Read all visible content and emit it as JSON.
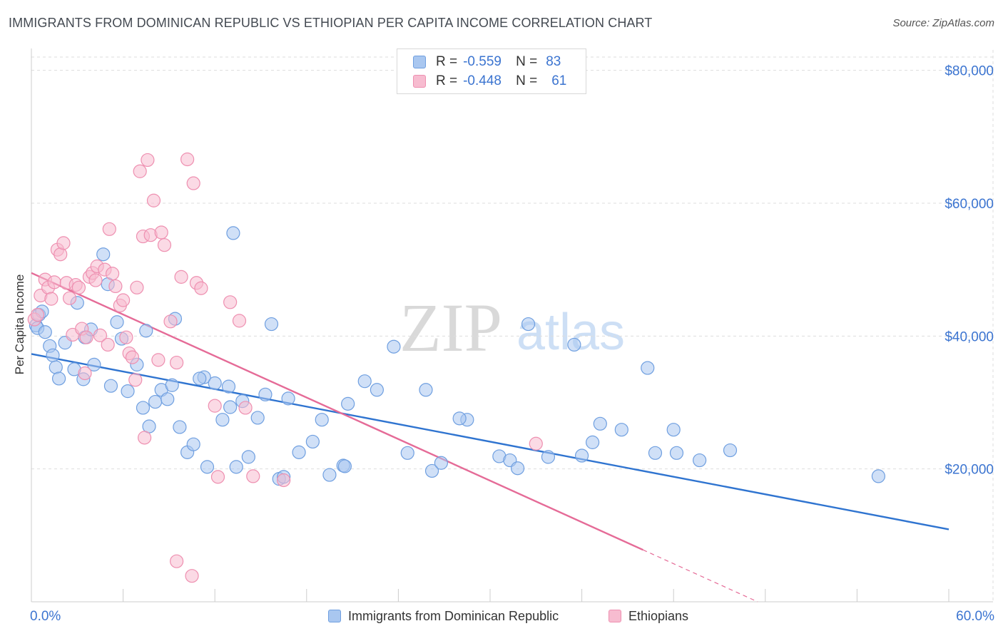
{
  "title": "IMMIGRANTS FROM DOMINICAN REPUBLIC VS ETHIOPIAN PER CAPITA INCOME CORRELATION CHART",
  "source": "Source: ZipAtlas.com",
  "watermark": {
    "zip": "ZIP",
    "atlas": "atlas"
  },
  "legend": {
    "r_label": "R =",
    "n_label": "N =",
    "rows": [
      {
        "r": "-0.559",
        "n": "83"
      },
      {
        "r": "-0.448",
        "n": "61"
      }
    ]
  },
  "colors": {
    "blue_fill": "#a9c7f0",
    "blue_stroke": "#6f9fe0",
    "blue_line": "#2f74d0",
    "pink_fill": "#f7bcd0",
    "pink_stroke": "#ee8fb0",
    "pink_line": "#e56b97",
    "axis_blue": "#3b74d0"
  },
  "chart_data": {
    "type": "scatter",
    "title": "IMMIGRANTS FROM DOMINICAN REPUBLIC VS ETHIOPIAN PER CAPITA INCOME CORRELATION CHART",
    "xlabel": "",
    "ylabel": "Per Capita Income",
    "xlim": [
      0,
      60
    ],
    "ylim": [
      0,
      82000
    ],
    "x_tick_labels": [
      "0.0%",
      "60.0%"
    ],
    "y_ticks": [
      20000,
      40000,
      60000,
      80000
    ],
    "y_tick_labels": [
      "$20,000",
      "$40,000",
      "$60,000",
      "$80,000"
    ],
    "grid": true,
    "series": [
      {
        "name": "Immigrants from Dominican Republic",
        "color": "blue",
        "trend": {
          "x0": 0,
          "y0": 37300,
          "x1": 60,
          "y1": 10900,
          "solid_until": 60
        },
        "points": [
          [
            0.3,
            41600
          ],
          [
            0.4,
            41200
          ],
          [
            0.5,
            43200
          ],
          [
            0.7,
            43700
          ],
          [
            0.9,
            40600
          ],
          [
            1.2,
            38500
          ],
          [
            1.4,
            37100
          ],
          [
            1.6,
            35300
          ],
          [
            1.8,
            33600
          ],
          [
            2.2,
            39000
          ],
          [
            2.8,
            35000
          ],
          [
            3.0,
            45000
          ],
          [
            3.4,
            33500
          ],
          [
            3.5,
            39800
          ],
          [
            3.9,
            41000
          ],
          [
            4.1,
            35700
          ],
          [
            4.7,
            52300
          ],
          [
            5.0,
            47800
          ],
          [
            5.2,
            32500
          ],
          [
            5.6,
            42100
          ],
          [
            5.9,
            39600
          ],
          [
            6.3,
            31700
          ],
          [
            6.9,
            35700
          ],
          [
            7.3,
            29200
          ],
          [
            7.5,
            40800
          ],
          [
            7.7,
            26400
          ],
          [
            8.1,
            30100
          ],
          [
            8.5,
            31900
          ],
          [
            8.9,
            30500
          ],
          [
            9.2,
            32600
          ],
          [
            9.4,
            42600
          ],
          [
            9.7,
            26300
          ],
          [
            10.2,
            22500
          ],
          [
            10.6,
            23700
          ],
          [
            11.3,
            33800
          ],
          [
            11.5,
            20300
          ],
          [
            12.0,
            32900
          ],
          [
            12.5,
            27400
          ],
          [
            12.9,
            32400
          ],
          [
            13.0,
            29300
          ],
          [
            13.4,
            20300
          ],
          [
            13.8,
            30200
          ],
          [
            14.2,
            21800
          ],
          [
            14.8,
            27700
          ],
          [
            15.3,
            31200
          ],
          [
            15.7,
            41800
          ],
          [
            16.8,
            30600
          ],
          [
            16.2,
            18500
          ],
          [
            16.5,
            18800
          ],
          [
            17.5,
            22500
          ],
          [
            18.4,
            24100
          ],
          [
            19.0,
            27400
          ],
          [
            19.5,
            19100
          ],
          [
            20.4,
            20500
          ],
          [
            20.7,
            29800
          ],
          [
            21.8,
            33200
          ],
          [
            22.6,
            31900
          ],
          [
            23.7,
            38400
          ],
          [
            24.6,
            22400
          ],
          [
            25.8,
            31900
          ],
          [
            26.2,
            19700
          ],
          [
            26.8,
            20900
          ],
          [
            28.5,
            27400
          ],
          [
            30.6,
            21900
          ],
          [
            31.3,
            21300
          ],
          [
            31.8,
            20100
          ],
          [
            32.5,
            41800
          ],
          [
            33.8,
            21800
          ],
          [
            35.5,
            38700
          ],
          [
            36.0,
            22000
          ],
          [
            36.7,
            24000
          ],
          [
            37.2,
            26800
          ],
          [
            38.6,
            25900
          ],
          [
            40.3,
            35200
          ],
          [
            40.8,
            22400
          ],
          [
            42.0,
            25900
          ],
          [
            42.2,
            22400
          ],
          [
            43.7,
            21300
          ],
          [
            45.7,
            22800
          ],
          [
            55.4,
            18900
          ],
          [
            20.5,
            20400
          ],
          [
            13.2,
            55500
          ],
          [
            28.0,
            27600
          ],
          [
            11.0,
            33600
          ]
        ]
      },
      {
        "name": "Ethiopians",
        "color": "pink",
        "trend": {
          "x0": 0,
          "y0": 49500,
          "x1": 47.5,
          "y1": 0,
          "solid_until": 40
        },
        "points": [
          [
            0.2,
            42500
          ],
          [
            0.4,
            43200
          ],
          [
            0.6,
            46100
          ],
          [
            0.9,
            48500
          ],
          [
            1.1,
            47300
          ],
          [
            1.3,
            45600
          ],
          [
            1.5,
            48100
          ],
          [
            1.7,
            53000
          ],
          [
            1.9,
            52300
          ],
          [
            2.1,
            54000
          ],
          [
            2.3,
            48000
          ],
          [
            2.5,
            45700
          ],
          [
            2.7,
            40200
          ],
          [
            2.9,
            47700
          ],
          [
            3.1,
            47300
          ],
          [
            3.3,
            41100
          ],
          [
            3.6,
            39800
          ],
          [
            3.8,
            48900
          ],
          [
            4.0,
            49500
          ],
          [
            4.2,
            48400
          ],
          [
            4.3,
            50500
          ],
          [
            4.5,
            40100
          ],
          [
            4.8,
            50000
          ],
          [
            5.0,
            38700
          ],
          [
            5.1,
            56100
          ],
          [
            5.3,
            49400
          ],
          [
            5.5,
            47500
          ],
          [
            5.8,
            44600
          ],
          [
            6.0,
            45400
          ],
          [
            6.2,
            39800
          ],
          [
            6.4,
            37400
          ],
          [
            6.6,
            36800
          ],
          [
            6.9,
            47300
          ],
          [
            7.1,
            64800
          ],
          [
            7.3,
            55000
          ],
          [
            7.6,
            66500
          ],
          [
            7.8,
            55200
          ],
          [
            8.0,
            60400
          ],
          [
            8.3,
            36400
          ],
          [
            8.5,
            55600
          ],
          [
            8.7,
            53700
          ],
          [
            9.1,
            42200
          ],
          [
            9.5,
            36000
          ],
          [
            9.8,
            48900
          ],
          [
            10.2,
            66600
          ],
          [
            10.6,
            63000
          ],
          [
            10.8,
            48000
          ],
          [
            11.1,
            47200
          ],
          [
            12.0,
            29500
          ],
          [
            12.2,
            18800
          ],
          [
            13.0,
            45100
          ],
          [
            13.6,
            42300
          ],
          [
            14.0,
            29200
          ],
          [
            14.5,
            18900
          ],
          [
            6.8,
            33400
          ],
          [
            7.4,
            24700
          ],
          [
            9.5,
            6100
          ],
          [
            10.5,
            3900
          ],
          [
            16.5,
            18300
          ],
          [
            33.0,
            23800
          ],
          [
            3.5,
            34400
          ]
        ]
      }
    ]
  },
  "bottom_legend": [
    {
      "label": "Immigrants from Dominican Republic"
    },
    {
      "label": "Ethiopians"
    }
  ]
}
